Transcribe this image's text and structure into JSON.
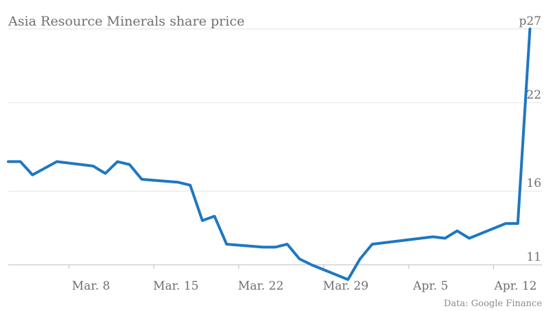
{
  "chart_data": {
    "type": "line",
    "title": "Asia Resource Minerals share price",
    "y_unit_prefix": "p",
    "ylim": [
      11,
      27
    ],
    "yticks": [
      11,
      16,
      22,
      27
    ],
    "ytick_labels": [
      "11",
      "16",
      "22",
      "27"
    ],
    "xticks": [
      "Mar. 8",
      "Mar. 15",
      "Mar. 22",
      "Mar. 29",
      "Apr. 5",
      "Apr. 12"
    ],
    "x_range": [
      "2014-03-03",
      "2014-04-16"
    ],
    "grid": true,
    "source": "Data: Google Finance",
    "color": "#1f77c1",
    "series": [
      {
        "x": [
          "2014-03-03",
          "2014-03-04",
          "2014-03-05",
          "2014-03-07",
          "2014-03-10",
          "2014-03-11",
          "2014-03-12",
          "2014-03-13",
          "2014-03-14",
          "2014-03-17",
          "2014-03-18",
          "2014-03-19",
          "2014-03-20",
          "2014-03-21",
          "2014-03-24",
          "2014-03-25",
          "2014-03-26",
          "2014-03-27",
          "2014-03-28",
          "2014-03-31",
          "2014-04-01",
          "2014-04-02",
          "2014-04-07",
          "2014-04-08",
          "2014-04-09",
          "2014-04-10",
          "2014-04-13",
          "2014-04-14",
          "2014-04-15"
        ],
        "y": [
          18.0,
          18.0,
          17.1,
          18.0,
          17.7,
          17.2,
          18.0,
          17.8,
          16.8,
          16.6,
          16.4,
          14.0,
          14.3,
          12.4,
          12.2,
          12.2,
          12.4,
          11.4,
          11.0,
          10.0,
          11.4,
          12.4,
          12.9,
          12.8,
          13.3,
          12.8,
          13.8,
          13.8,
          27.0
        ]
      }
    ]
  }
}
